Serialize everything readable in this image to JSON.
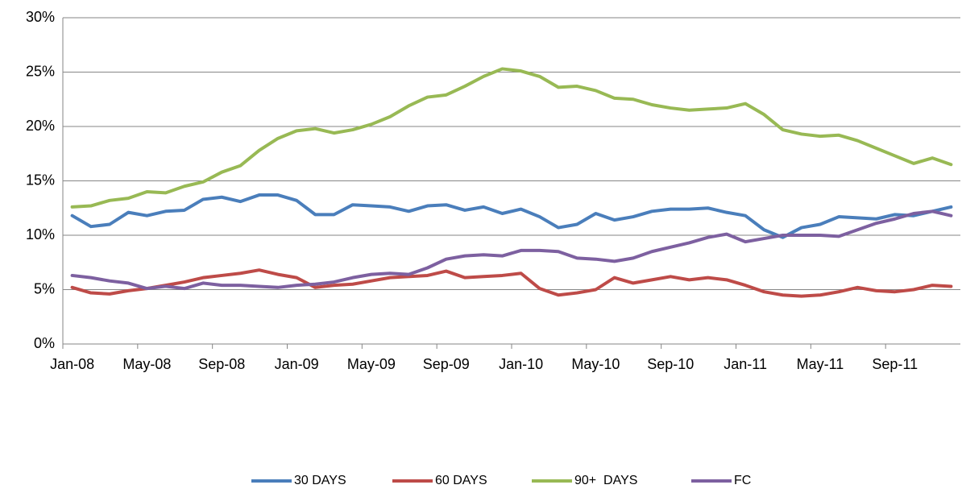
{
  "chart_data": {
    "type": "line",
    "categories": [
      "Jan-08",
      null,
      null,
      null,
      "May-08",
      null,
      null,
      null,
      "Sep-08",
      null,
      null,
      null,
      "Jan-09",
      null,
      null,
      null,
      "May-09",
      null,
      null,
      null,
      "Sep-09",
      null,
      null,
      null,
      "Jan-10",
      null,
      null,
      null,
      "May-10",
      null,
      null,
      null,
      "Sep-10",
      null,
      null,
      null,
      "Jan-11",
      null,
      null,
      null,
      "May-11",
      null,
      null,
      null,
      "Sep-11",
      null,
      null,
      null
    ],
    "series": [
      {
        "name": "30 DAYS",
        "color": "#4a7ebb",
        "values": [
          11.8,
          10.8,
          11.0,
          12.1,
          11.8,
          12.2,
          12.3,
          13.3,
          13.5,
          13.1,
          13.7,
          13.7,
          13.2,
          11.9,
          11.9,
          12.8,
          12.7,
          12.6,
          12.2,
          12.7,
          12.8,
          12.3,
          12.6,
          12.0,
          12.4,
          11.7,
          10.7,
          11.0,
          12.0,
          11.4,
          11.7,
          12.2,
          12.4,
          12.4,
          12.5,
          12.1,
          11.8,
          10.5,
          9.8,
          10.7,
          11.0,
          11.7,
          11.6,
          11.5,
          11.9,
          11.8,
          12.2,
          12.6
        ]
      },
      {
        "name": "60 DAYS",
        "color": "#be4b48",
        "values": [
          5.2,
          4.7,
          4.6,
          4.9,
          5.1,
          5.4,
          5.7,
          6.1,
          6.3,
          6.5,
          6.8,
          6.4,
          6.1,
          5.2,
          5.4,
          5.5,
          5.8,
          6.1,
          6.2,
          6.3,
          6.7,
          6.1,
          6.2,
          6.3,
          6.5,
          5.1,
          4.5,
          4.7,
          5.0,
          6.1,
          5.6,
          5.9,
          6.2,
          5.9,
          6.1,
          5.9,
          5.4,
          4.8,
          4.5,
          4.4,
          4.5,
          4.8,
          5.2,
          4.9,
          4.8,
          5.0,
          5.4,
          5.3
        ]
      },
      {
        "name": "90+  DAYS",
        "color": "#98b954",
        "values": [
          12.6,
          12.7,
          13.2,
          13.4,
          14.0,
          13.9,
          14.5,
          14.9,
          15.8,
          16.4,
          17.8,
          18.9,
          19.6,
          19.8,
          19.4,
          19.7,
          20.2,
          20.9,
          21.9,
          22.7,
          22.9,
          23.7,
          24.6,
          25.3,
          25.1,
          24.6,
          23.6,
          23.7,
          23.3,
          22.6,
          22.5,
          22.0,
          21.7,
          21.5,
          21.6,
          21.7,
          22.1,
          21.1,
          19.7,
          19.3,
          19.1,
          19.2,
          18.7,
          18.0,
          17.3,
          16.6,
          17.1,
          16.5
        ]
      },
      {
        "name": "FC",
        "color": "#7d60a0",
        "values": [
          6.3,
          6.1,
          5.8,
          5.6,
          5.1,
          5.3,
          5.1,
          5.6,
          5.4,
          5.4,
          5.3,
          5.2,
          5.4,
          5.5,
          5.7,
          6.1,
          6.4,
          6.5,
          6.4,
          7.0,
          7.8,
          8.1,
          8.2,
          8.1,
          8.6,
          8.6,
          8.5,
          7.9,
          7.8,
          7.6,
          7.9,
          8.5,
          8.9,
          9.3,
          9.8,
          10.1,
          9.4,
          9.7,
          10.0,
          10.0,
          10.0,
          9.9,
          10.5,
          11.1,
          11.5,
          12.0,
          12.2,
          11.8
        ]
      }
    ],
    "ylim": [
      0,
      30
    ],
    "yticks": [
      {
        "value": 0,
        "label": "0%"
      },
      {
        "value": 5,
        "label": "5%"
      },
      {
        "value": 10,
        "label": "10%"
      },
      {
        "value": 15,
        "label": "15%"
      },
      {
        "value": 20,
        "label": "20%"
      },
      {
        "value": 25,
        "label": "25%"
      },
      {
        "value": 30,
        "label": "30%"
      }
    ],
    "grid": true,
    "legend": "bottom"
  }
}
